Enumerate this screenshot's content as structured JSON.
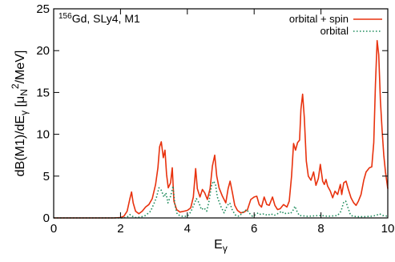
{
  "chart_data": {
    "type": "line",
    "annotation": {
      "superscript": "156",
      "main": "Gd, SLy4, M1"
    },
    "xlabel": {
      "main": "E",
      "sub": "γ"
    },
    "ylabel": {
      "part1": "dB(M1)/dE",
      "part1_sub": "γ",
      "part2": "[μ",
      "part2_sub": "N",
      "part2_sup": "2",
      "part3": "/MeV]"
    },
    "xlim": [
      0,
      10
    ],
    "ylim": [
      0,
      25
    ],
    "xticks": [
      0,
      2,
      4,
      6,
      8,
      10
    ],
    "yticks": [
      0,
      5,
      10,
      15,
      20,
      25
    ],
    "legend_position": "top-right",
    "series": [
      {
        "name": "orbital + spin",
        "color": "#e8320e",
        "style": "solid",
        "points": [
          [
            0,
            0
          ],
          [
            1.8,
            0
          ],
          [
            2.0,
            0.05
          ],
          [
            2.1,
            0.2
          ],
          [
            2.2,
            0.8
          ],
          [
            2.28,
            2.3
          ],
          [
            2.33,
            3.1
          ],
          [
            2.38,
            1.8
          ],
          [
            2.45,
            0.8
          ],
          [
            2.55,
            0.5
          ],
          [
            2.65,
            0.8
          ],
          [
            2.75,
            1.3
          ],
          [
            2.85,
            1.6
          ],
          [
            2.95,
            2.3
          ],
          [
            3.05,
            4.0
          ],
          [
            3.12,
            6.0
          ],
          [
            3.17,
            8.5
          ],
          [
            3.22,
            9.1
          ],
          [
            3.28,
            7.2
          ],
          [
            3.33,
            8.1
          ],
          [
            3.38,
            5.2
          ],
          [
            3.43,
            3.6
          ],
          [
            3.5,
            4.2
          ],
          [
            3.55,
            6.0
          ],
          [
            3.6,
            2.0
          ],
          [
            3.68,
            1.0
          ],
          [
            3.78,
            0.7
          ],
          [
            3.9,
            0.8
          ],
          [
            4.0,
            0.9
          ],
          [
            4.1,
            1.2
          ],
          [
            4.18,
            2.5
          ],
          [
            4.25,
            5.9
          ],
          [
            4.3,
            3.5
          ],
          [
            4.38,
            2.5
          ],
          [
            4.45,
            3.4
          ],
          [
            4.52,
            3.0
          ],
          [
            4.6,
            2.2
          ],
          [
            4.68,
            3.5
          ],
          [
            4.75,
            6.2
          ],
          [
            4.82,
            7.5
          ],
          [
            4.88,
            5.0
          ],
          [
            4.95,
            3.6
          ],
          [
            5.05,
            2.6
          ],
          [
            5.15,
            1.8
          ],
          [
            5.22,
            3.5
          ],
          [
            5.28,
            4.4
          ],
          [
            5.35,
            3.0
          ],
          [
            5.42,
            1.5
          ],
          [
            5.5,
            0.9
          ],
          [
            5.6,
            0.6
          ],
          [
            5.7,
            0.7
          ],
          [
            5.8,
            1.0
          ],
          [
            5.9,
            2.2
          ],
          [
            6.0,
            2.5
          ],
          [
            6.08,
            2.6
          ],
          [
            6.15,
            1.6
          ],
          [
            6.22,
            1.3
          ],
          [
            6.3,
            2.5
          ],
          [
            6.38,
            1.6
          ],
          [
            6.45,
            1.5
          ],
          [
            6.55,
            2.5
          ],
          [
            6.62,
            1.5
          ],
          [
            6.7,
            1.0
          ],
          [
            6.78,
            1.1
          ],
          [
            6.88,
            1.6
          ],
          [
            6.98,
            1.3
          ],
          [
            7.05,
            2.0
          ],
          [
            7.12,
            5.0
          ],
          [
            7.18,
            8.9
          ],
          [
            7.24,
            8.1
          ],
          [
            7.3,
            9.0
          ],
          [
            7.36,
            9.3
          ],
          [
            7.4,
            13.0
          ],
          [
            7.45,
            14.8
          ],
          [
            7.5,
            12.0
          ],
          [
            7.56,
            6.8
          ],
          [
            7.62,
            5.0
          ],
          [
            7.7,
            4.5
          ],
          [
            7.78,
            5.5
          ],
          [
            7.85,
            3.9
          ],
          [
            7.92,
            4.7
          ],
          [
            7.98,
            6.4
          ],
          [
            8.05,
            4.4
          ],
          [
            8.1,
            4.0
          ],
          [
            8.15,
            4.6
          ],
          [
            8.2,
            3.8
          ],
          [
            8.28,
            3.2
          ],
          [
            8.35,
            2.4
          ],
          [
            8.42,
            3.2
          ],
          [
            8.5,
            2.8
          ],
          [
            8.58,
            4.0
          ],
          [
            8.62,
            2.8
          ],
          [
            8.68,
            4.2
          ],
          [
            8.75,
            4.4
          ],
          [
            8.82,
            3.4
          ],
          [
            8.9,
            2.4
          ],
          [
            8.98,
            1.8
          ],
          [
            9.05,
            1.5
          ],
          [
            9.12,
            2.0
          ],
          [
            9.2,
            2.8
          ],
          [
            9.28,
            4.5
          ],
          [
            9.35,
            5.5
          ],
          [
            9.45,
            6.0
          ],
          [
            9.52,
            6.1
          ],
          [
            9.58,
            9.0
          ],
          [
            9.63,
            16.0
          ],
          [
            9.68,
            21.2
          ],
          [
            9.73,
            19.5
          ],
          [
            9.78,
            14.0
          ],
          [
            9.83,
            10.5
          ],
          [
            9.88,
            7.5
          ],
          [
            9.93,
            5.5
          ],
          [
            10.0,
            3.5
          ]
        ]
      },
      {
        "name": "orbital",
        "color": "#1a8a5a",
        "style": "dotted",
        "points": [
          [
            0,
            0
          ],
          [
            2.1,
            0
          ],
          [
            2.2,
            0.1
          ],
          [
            2.28,
            0.4
          ],
          [
            2.35,
            0.2
          ],
          [
            2.45,
            0.05
          ],
          [
            2.6,
            0.1
          ],
          [
            2.75,
            0.3
          ],
          [
            2.9,
            0.8
          ],
          [
            3.0,
            1.7
          ],
          [
            3.08,
            2.5
          ],
          [
            3.15,
            3.6
          ],
          [
            3.22,
            3.3
          ],
          [
            3.3,
            2.5
          ],
          [
            3.36,
            3.0
          ],
          [
            3.42,
            1.8
          ],
          [
            3.5,
            2.6
          ],
          [
            3.57,
            3.8
          ],
          [
            3.63,
            1.5
          ],
          [
            3.7,
            0.4
          ],
          [
            3.85,
            0.2
          ],
          [
            4.0,
            0.2
          ],
          [
            4.1,
            0.7
          ],
          [
            4.2,
            1.6
          ],
          [
            4.27,
            2.3
          ],
          [
            4.35,
            1.8
          ],
          [
            4.42,
            1.0
          ],
          [
            4.5,
            1.2
          ],
          [
            4.58,
            0.8
          ],
          [
            4.65,
            2.0
          ],
          [
            4.72,
            3.8
          ],
          [
            4.78,
            4.4
          ],
          [
            4.84,
            4.1
          ],
          [
            4.9,
            2.5
          ],
          [
            5.0,
            1.4
          ],
          [
            5.1,
            0.6
          ],
          [
            5.2,
            1.5
          ],
          [
            5.27,
            1.8
          ],
          [
            5.35,
            0.9
          ],
          [
            5.45,
            0.3
          ],
          [
            5.55,
            0.2
          ],
          [
            5.7,
            0.8
          ],
          [
            5.78,
            1.0
          ],
          [
            5.85,
            0.6
          ],
          [
            5.95,
            0.2
          ],
          [
            6.05,
            0.4
          ],
          [
            6.12,
            0.6
          ],
          [
            6.2,
            0.4
          ],
          [
            6.3,
            0.5
          ],
          [
            6.4,
            0.3
          ],
          [
            6.5,
            0.5
          ],
          [
            6.6,
            0.3
          ],
          [
            6.75,
            0.6
          ],
          [
            6.82,
            0.8
          ],
          [
            6.9,
            0.5
          ],
          [
            7.0,
            0.6
          ],
          [
            7.08,
            0.5
          ],
          [
            7.15,
            0.8
          ],
          [
            7.22,
            1.4
          ],
          [
            7.28,
            0.8
          ],
          [
            7.35,
            0.3
          ],
          [
            7.45,
            0.25
          ],
          [
            7.6,
            0.2
          ],
          [
            7.8,
            0.25
          ],
          [
            8.0,
            0.3
          ],
          [
            8.2,
            0.2
          ],
          [
            8.4,
            0.25
          ],
          [
            8.5,
            0.3
          ],
          [
            8.6,
            0.8
          ],
          [
            8.68,
            1.9
          ],
          [
            8.74,
            2.0
          ],
          [
            8.8,
            1.3
          ],
          [
            8.88,
            0.4
          ],
          [
            8.95,
            0.2
          ],
          [
            9.1,
            0.15
          ],
          [
            9.3,
            0.15
          ],
          [
            9.5,
            0.2
          ],
          [
            9.65,
            0.3
          ],
          [
            9.75,
            0.5
          ],
          [
            9.85,
            0.3
          ],
          [
            10.0,
            0.2
          ]
        ]
      }
    ]
  }
}
